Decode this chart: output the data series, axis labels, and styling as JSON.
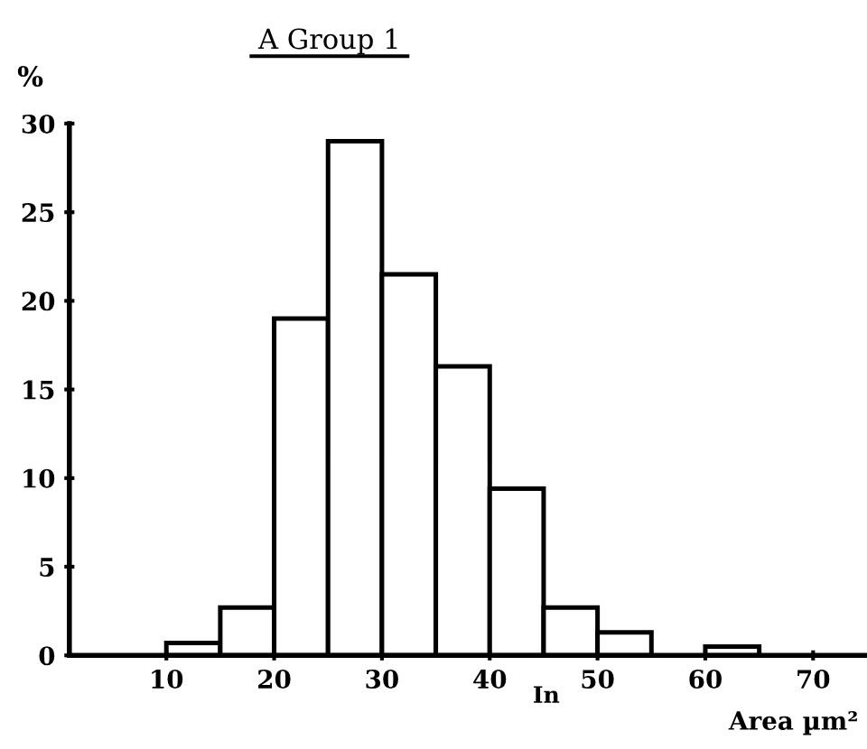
{
  "chart_data": {
    "type": "histogram",
    "title": "A Group 1",
    "ylabel": "%",
    "xlabel": "Area µm²",
    "annotations": [
      "In"
    ],
    "bins": [
      10,
      15,
      20,
      25,
      30,
      35,
      40,
      45,
      50,
      55,
      60,
      65
    ],
    "values": [
      0.7,
      2.7,
      19,
      29,
      21.5,
      16.3,
      9.4,
      2.7,
      1.3,
      null,
      0.5
    ],
    "color": "#ffffff",
    "xlim": [
      1,
      75
    ],
    "xticks": [
      10,
      20,
      30,
      40,
      50,
      60,
      70
    ],
    "ylim": [
      0,
      30
    ],
    "yticks": [
      0,
      5,
      10,
      15,
      20,
      25,
      30
    ],
    "grid": false
  }
}
